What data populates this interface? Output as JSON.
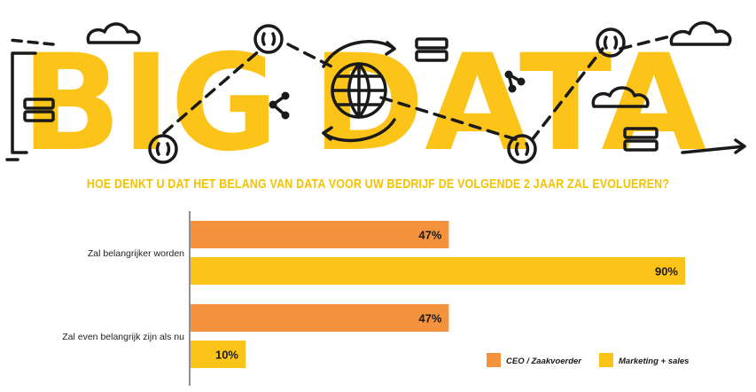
{
  "hero": {
    "big_word": "BIG",
    "data_word": "DATA"
  },
  "question": "HOE DENKT U DAT HET BELANG VAN DATA VOOR UW BEDRIJF DE VOLGENDE 2 JAAR ZAL EVOLUEREN?",
  "colors": {
    "ceo": "#f5923e",
    "marketing": "#fcc419",
    "title": "#f5c200",
    "ink": "#1a1a1a"
  },
  "chart_data": {
    "type": "bar",
    "orientation": "horizontal",
    "categories": [
      "Zal belangrijker worden",
      "Zal even belangrijk zijn als nu"
    ],
    "series": [
      {
        "name": "CEO / Zaakvoerder",
        "values": [
          47,
          47
        ],
        "labels": [
          "47%",
          "47%"
        ]
      },
      {
        "name": "Marketing + sales",
        "values": [
          90,
          10
        ],
        "labels": [
          "90%",
          "10%"
        ]
      }
    ],
    "xlim": [
      0,
      100
    ],
    "unit": "%",
    "legend": "bottom-right",
    "grid": false
  }
}
